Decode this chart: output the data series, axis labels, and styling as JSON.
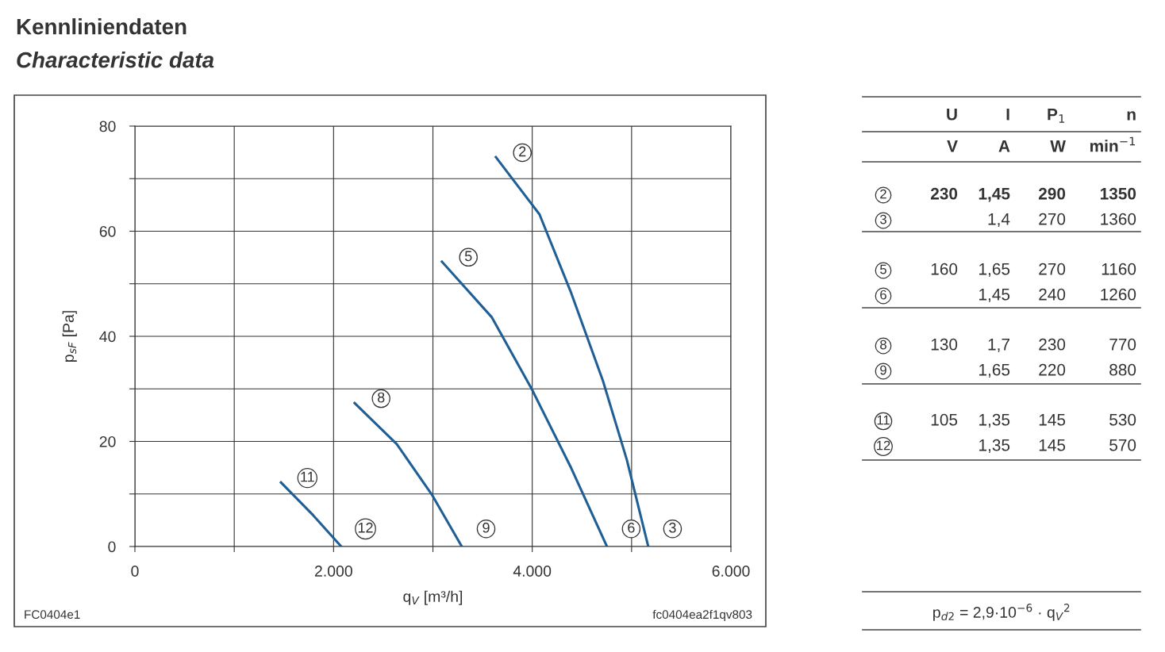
{
  "chart_data": [
    {
      "type": "line",
      "title": "Kennliniendaten",
      "subtitle": "Characteristic data",
      "xlabel": "q$_{V}$ [m³/h]",
      "ylabel": "p$_{sF}$ [Pa]",
      "series": [
        {
          "color": "#1f5f96",
          "x": [
            3634,
            4073,
            4393,
            4712,
            4952,
            5168
          ],
          "values": [
            74.1,
            63.2,
            48.2,
            31.5,
            16.5,
            0
          ]
        },
        {
          "color": "#1f5f96",
          "x": [
            3091,
            3594,
            3994,
            4393,
            4752
          ],
          "values": [
            54.2,
            43.6,
            30.0,
            14.9,
            0
          ]
        },
        {
          "color": "#1f5f96",
          "x": [
            2212,
            2636,
            2995,
            3291
          ],
          "values": [
            27.3,
            19.5,
            9.7,
            0
          ]
        },
        {
          "color": "#1f5f96",
          "x": [
            1470,
            1797,
            2077
          ],
          "values": [
            12.2,
            5.9,
            0
          ]
        }
      ],
      "xlim": [
        0,
        6000
      ],
      "ylim": [
        0,
        80
      ],
      "xticks": [
        0,
        {
          "value": 1000,
          "label": null
        },
        {
          "value": 2000,
          "label": "2.000"
        },
        {
          "value": 3000,
          "label": null
        },
        {
          "value": 4000,
          "label": "4.000"
        },
        {
          "value": 5000,
          "label": null
        },
        {
          "value": 6000,
          "label": "6.000"
        }
      ],
      "yticks": [
        0,
        {
          "value": 10,
          "label": null
        },
        20,
        {
          "value": 30,
          "label": null
        },
        40,
        {
          "value": 50,
          "label": null
        },
        60,
        {
          "value": 70,
          "label": null
        },
        80
      ],
      "grid": true,
      "marker": "none",
      "line_style": "solid",
      "annotations": [
        "2",
        "3",
        "5",
        "6",
        "8",
        "9",
        "11",
        "12",
        "FC0404e1",
        "fc0404ea2f1qv803"
      ]
    },
    {
      "type": "other",
      "annotations": [
        null,
        "U",
        "I",
        "P$_{1}$",
        "n",
        null,
        "V",
        "A",
        "W",
        "min$^{−1}$",
        "2",
        "230",
        "1,45",
        "290",
        "1350",
        "3",
        null,
        "1,4",
        "270",
        "1360",
        "5",
        "160",
        "1,65",
        "270",
        "1160",
        "6",
        null,
        "1,45",
        "240",
        "1260",
        "8",
        "130",
        "1,7",
        "230",
        "770",
        "9",
        null,
        "1,65",
        "220",
        "880",
        "11",
        "105",
        "1,35",
        "145",
        "530",
        "12",
        null,
        "1,35",
        "145",
        "570",
        "p$_{d2}$ = 2,9·10$^{−6}$ · q$_{V}$$^{2}$"
      ]
    }
  ]
}
